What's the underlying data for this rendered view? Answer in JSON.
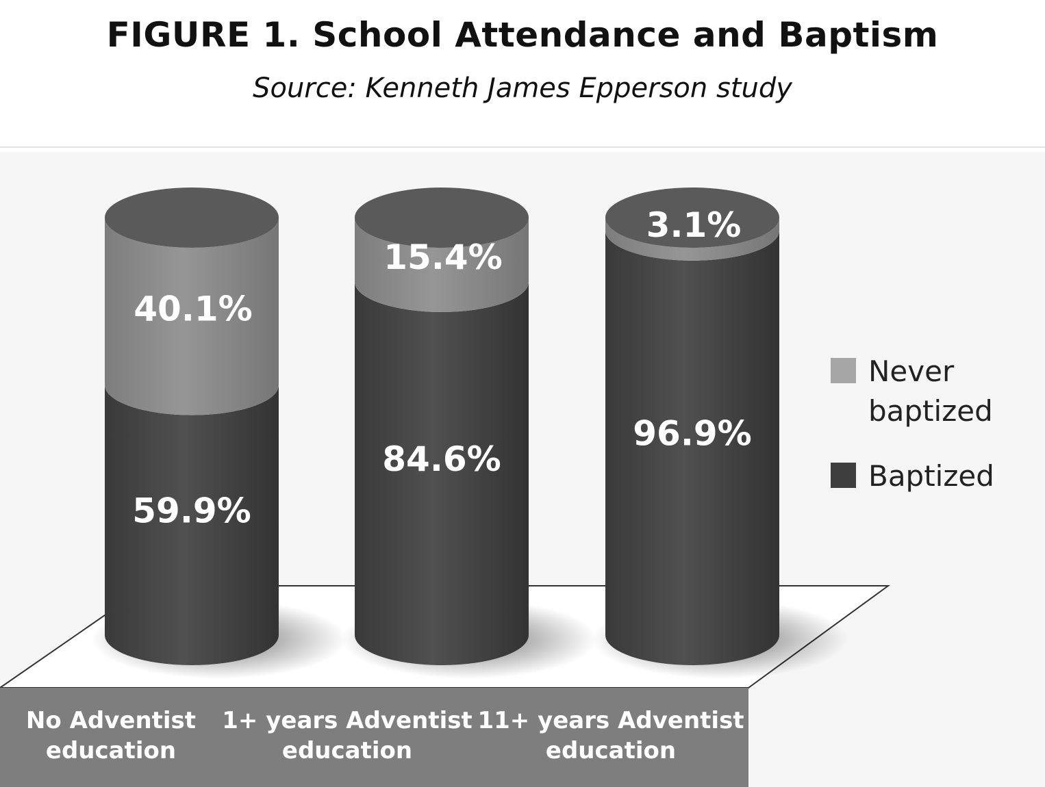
{
  "title": "FIGURE 1. School Attendance and Baptism",
  "subtitle": "Source: Kenneth James Epperson study",
  "chart_data": {
    "type": "bar",
    "stacked": true,
    "style": "3d-cylinder",
    "categories": [
      [
        "No Adventist",
        "education"
      ],
      [
        "1+ years Adventist",
        "education"
      ],
      [
        "11+ years Adventist",
        "education"
      ]
    ],
    "series": [
      {
        "name": "Baptized",
        "values": [
          59.9,
          84.6,
          96.9
        ],
        "labels": [
          "59.9%",
          "84.6%",
          "96.9%"
        ],
        "color": "#4a4a4a"
      },
      {
        "name": "Never baptized",
        "values": [
          40.1,
          15.4,
          3.1
        ],
        "labels": [
          "40.1%",
          "15.4%",
          "3.1%"
        ],
        "color": "#8f8f8f"
      }
    ],
    "legend": {
      "placement": "right",
      "items": [
        {
          "name": [
            "Never",
            "baptized"
          ],
          "color": "#a6a6a6"
        },
        {
          "name": [
            "Baptized"
          ],
          "color": "#3e3e3e"
        }
      ]
    },
    "ylim": [
      0,
      100
    ],
    "grid": false
  }
}
